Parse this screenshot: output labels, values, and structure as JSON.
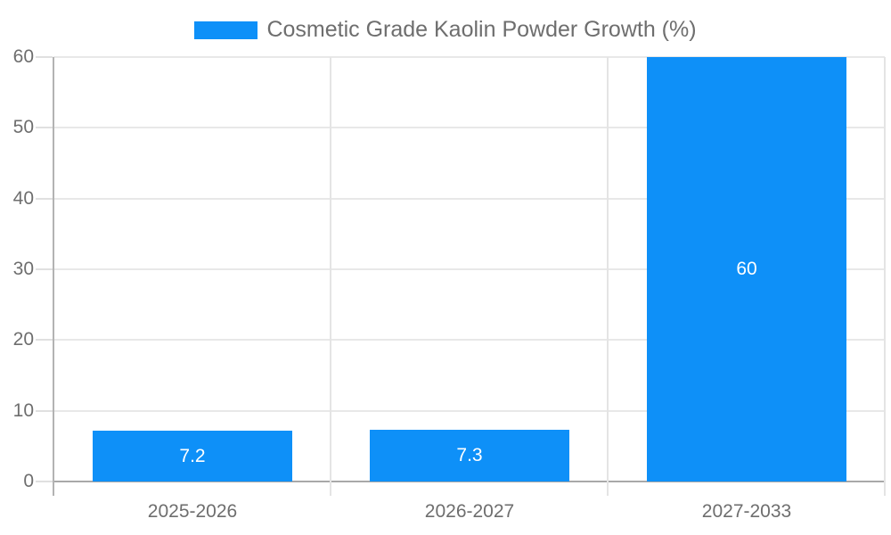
{
  "legend": {
    "label": "Cosmetic Grade Kaolin Powder Growth (%)"
  },
  "chart_data": {
    "type": "bar",
    "title": "",
    "series_name": "Cosmetic Grade Kaolin Powder Growth (%)",
    "categories": [
      "2025-2026",
      "2026-2027",
      "2027-2033"
    ],
    "values": [
      7.2,
      7.3,
      60
    ],
    "value_labels": [
      "7.2",
      "7.3",
      "60"
    ],
    "xlabel": "",
    "ylabel": "",
    "ylim": [
      0,
      60
    ],
    "yticks": [
      0,
      10,
      20,
      30,
      40,
      50,
      60
    ],
    "ytick_labels": [
      "0",
      "10",
      "20",
      "30",
      "40",
      "50",
      "60"
    ],
    "grid": true,
    "legend_position": "top-center",
    "bar_label_position": "inside-center"
  },
  "style": {
    "bar_color": "#0E90F8",
    "bar_label_color": "#ffffff",
    "grid_color": "#e8e8e8",
    "separator_color": "#e4e4e4",
    "y_axis_color": "#b3b3b3",
    "x_axis_color": "#a8a8a8",
    "tick_color": "#e0e0e0",
    "text_color": "#6e6e6e",
    "background_color": "#ffffff"
  }
}
